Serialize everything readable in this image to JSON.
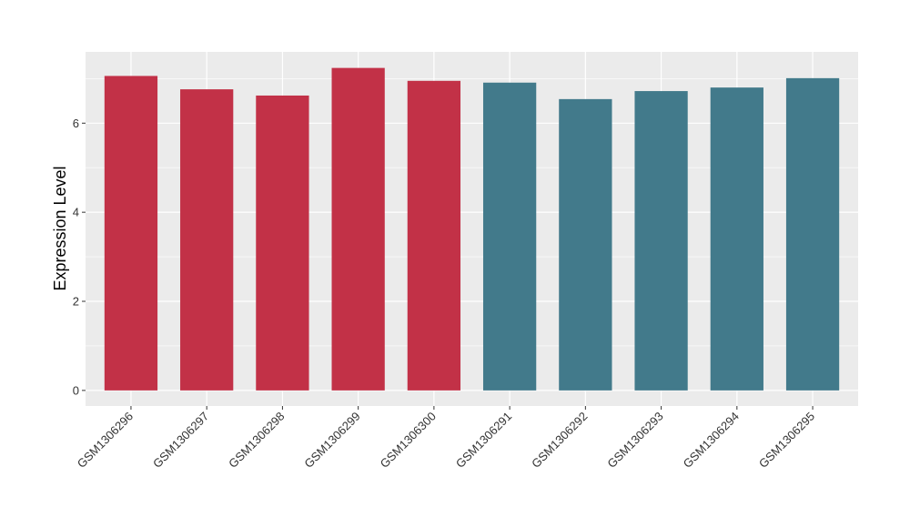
{
  "chart_data": {
    "type": "bar",
    "title": "",
    "xlabel": "",
    "ylabel": "Expression Level",
    "ylim": [
      -0.35,
      7.6
    ],
    "yticks": [
      0,
      2,
      4,
      6
    ],
    "ytick_labels": [
      "0",
      "2",
      "4",
      "6"
    ],
    "grid": true,
    "legend": "none",
    "categories": [
      "GSM1306296",
      "GSM1306297",
      "GSM1306298",
      "GSM1306299",
      "GSM1306300",
      "GSM1306291",
      "GSM1306292",
      "GSM1306293",
      "GSM1306294",
      "GSM1306295"
    ],
    "values": [
      7.06,
      6.76,
      6.62,
      7.24,
      6.95,
      6.91,
      6.54,
      6.72,
      6.8,
      7.01
    ],
    "bar_colors": [
      "#c23147",
      "#c23147",
      "#c23147",
      "#c23147",
      "#c23147",
      "#427a8b",
      "#427a8b",
      "#427a8b",
      "#427a8b",
      "#427a8b"
    ],
    "panel_color": "#ebebeb",
    "grid_color": "#ffffff"
  }
}
